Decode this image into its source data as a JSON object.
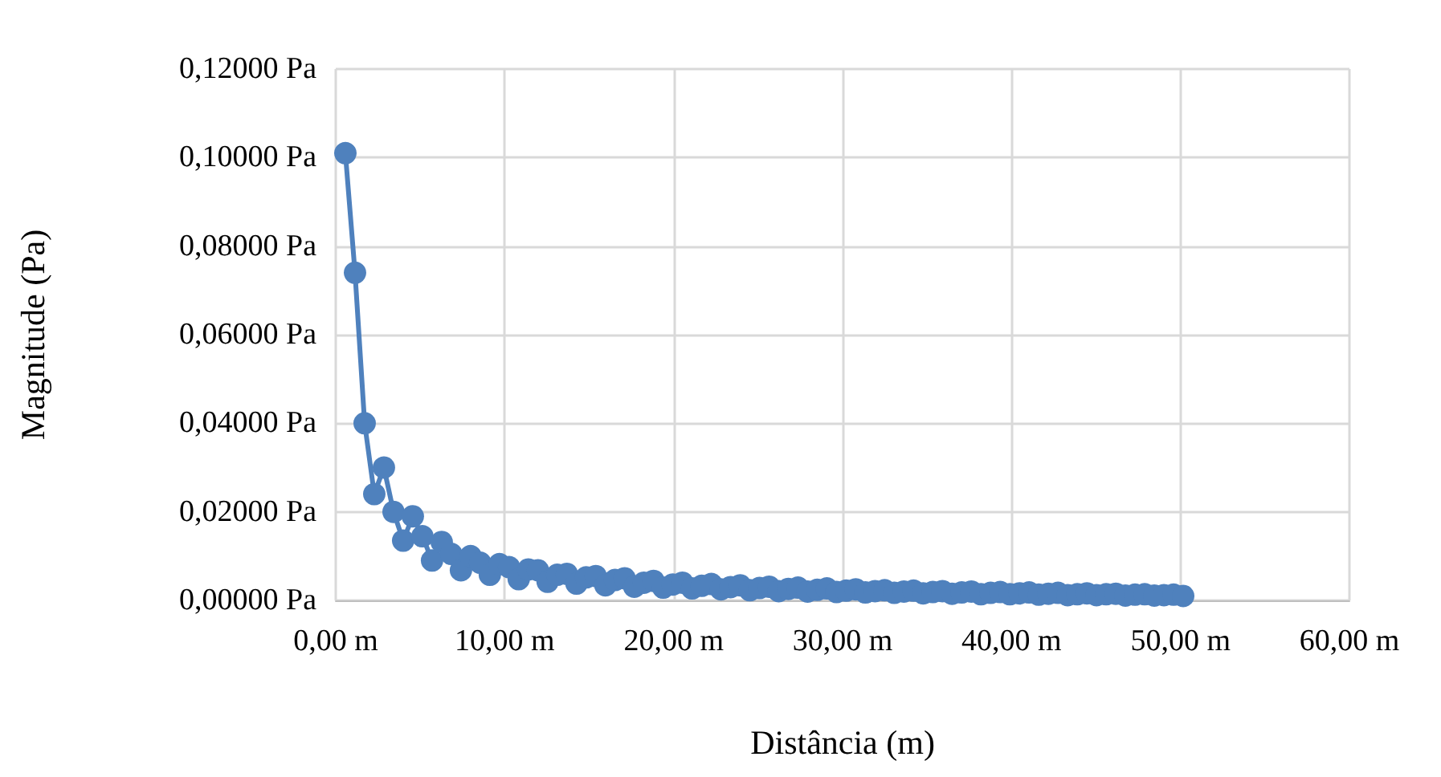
{
  "chart_data": {
    "type": "line",
    "xlabel": "Distância (m)",
    "ylabel": "Magnitude (Pa)",
    "x": [
      0.57,
      1.14,
      1.71,
      2.28,
      2.85,
      3.42,
      3.99,
      4.56,
      5.13,
      5.7,
      6.27,
      6.84,
      7.41,
      7.98,
      8.55,
      9.12,
      9.69,
      10.26,
      10.83,
      11.4,
      11.97,
      12.54,
      13.11,
      13.68,
      14.25,
      14.82,
      15.39,
      15.96,
      16.53,
      17.1,
      17.67,
      18.24,
      18.81,
      19.38,
      19.95,
      20.52,
      21.09,
      21.66,
      22.23,
      22.8,
      23.37,
      23.94,
      24.51,
      25.08,
      25.65,
      26.22,
      26.79,
      27.36,
      27.93,
      28.5,
      29.07,
      29.64,
      30.21,
      30.78,
      31.35,
      31.92,
      32.49,
      33.06,
      33.63,
      34.2,
      34.77,
      35.34,
      35.91,
      36.48,
      37.05,
      37.62,
      38.19,
      38.76,
      39.33,
      39.9,
      40.47,
      41.04,
      41.61,
      42.18,
      42.75,
      43.32,
      43.89,
      44.46,
      45.03,
      45.6,
      46.17,
      46.74,
      47.31,
      47.88,
      48.45,
      49.02,
      49.59,
      50.16
    ],
    "series": [
      {
        "color": "#4f81bd",
        "values": [
          0.101,
          0.074,
          0.04,
          0.024,
          0.03,
          0.02,
          0.0135,
          0.019,
          0.0145,
          0.009,
          0.0132,
          0.0105,
          0.0068,
          0.01,
          0.0085,
          0.0058,
          0.0082,
          0.0075,
          0.0048,
          0.007,
          0.0068,
          0.0042,
          0.0058,
          0.006,
          0.0038,
          0.0052,
          0.0055,
          0.0034,
          0.0046,
          0.005,
          0.0031,
          0.004,
          0.0044,
          0.0029,
          0.0036,
          0.004,
          0.0027,
          0.0033,
          0.0037,
          0.0025,
          0.003,
          0.0034,
          0.0023,
          0.0028,
          0.0031,
          0.0021,
          0.0026,
          0.0029,
          0.002,
          0.0024,
          0.0027,
          0.0019,
          0.0022,
          0.0025,
          0.0018,
          0.0021,
          0.0023,
          0.0017,
          0.002,
          0.0022,
          0.0016,
          0.0019,
          0.0021,
          0.0015,
          0.0018,
          0.002,
          0.0014,
          0.0017,
          0.0019,
          0.0014,
          0.0016,
          0.0018,
          0.0013,
          0.0015,
          0.0017,
          0.0012,
          0.0014,
          0.0016,
          0.0012,
          0.0014,
          0.0015,
          0.0011,
          0.0013,
          0.0014,
          0.0011,
          0.0012,
          0.0013,
          0.001
        ]
      }
    ],
    "xlim": [
      0,
      60
    ],
    "xticks": [
      {
        "value": 0,
        "label": "0,00 m"
      },
      {
        "value": 10,
        "label": "10,00 m"
      },
      {
        "value": 20,
        "label": "20,00 m"
      },
      {
        "value": 30,
        "label": "30,00 m"
      },
      {
        "value": 40,
        "label": "40,00 m"
      },
      {
        "value": 50,
        "label": "50,00 m"
      },
      {
        "value": 60,
        "label": "60,00 m"
      }
    ],
    "ylim": [
      0,
      0.12
    ],
    "yticks": [
      {
        "value": 0,
        "label": "0,00000 Pa"
      },
      {
        "value": 0.02,
        "label": "0,02000 Pa"
      },
      {
        "value": 0.04,
        "label": "0,04000 Pa"
      },
      {
        "value": 0.06,
        "label": "0,06000 Pa"
      },
      {
        "value": 0.08,
        "label": "0,08000 Pa"
      },
      {
        "value": 0.1,
        "label": "0,10000 Pa"
      },
      {
        "value": 0.12,
        "label": "0,12000 Pa"
      }
    ],
    "grid": true,
    "marker": "circle",
    "line_style": "solid"
  }
}
